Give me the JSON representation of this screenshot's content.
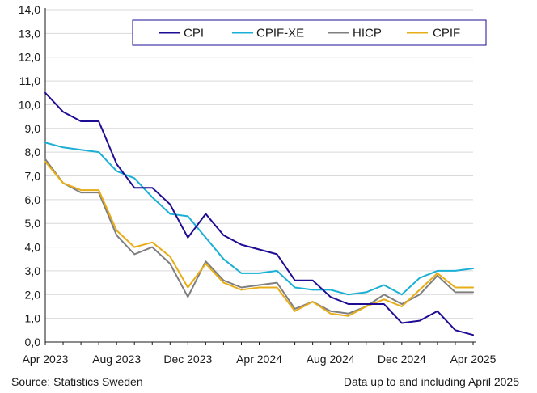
{
  "chart_data": {
    "type": "line",
    "title": "",
    "xlabel": "",
    "ylabel": "",
    "ylim": [
      0,
      14
    ],
    "yticks": [
      "0,0",
      "1,0",
      "2,0",
      "3,0",
      "4,0",
      "5,0",
      "6,0",
      "7,0",
      "8,0",
      "9,0",
      "10,0",
      "11,0",
      "12,0",
      "13,0",
      "14,0"
    ],
    "x": [
      "2023-04",
      "2023-05",
      "2023-06",
      "2023-07",
      "2023-08",
      "2023-09",
      "2023-10",
      "2023-11",
      "2023-12",
      "2024-01",
      "2024-02",
      "2024-03",
      "2024-04",
      "2024-05",
      "2024-06",
      "2024-07",
      "2024-08",
      "2024-09",
      "2024-10",
      "2024-11",
      "2024-12",
      "2025-01",
      "2025-02",
      "2025-03",
      "2025-04"
    ],
    "xticks": [
      {
        "x": "2023-04",
        "label": "Apr 2023"
      },
      {
        "x": "2023-08",
        "label": "Aug 2023"
      },
      {
        "x": "2023-12",
        "label": "Dec 2023"
      },
      {
        "x": "2024-04",
        "label": "Apr 2024"
      },
      {
        "x": "2024-08",
        "label": "Aug 2024"
      },
      {
        "x": "2024-12",
        "label": "Dec 2024"
      },
      {
        "x": "2025-04",
        "label": "Apr 2025"
      }
    ],
    "grid": true,
    "legend_position": "top-right",
    "series": [
      {
        "name": "CPI",
        "color": "#1e0c94",
        "values": [
          10.5,
          9.7,
          9.3,
          9.3,
          7.5,
          6.5,
          6.5,
          5.8,
          4.4,
          5.4,
          4.5,
          4.1,
          3.9,
          3.7,
          2.6,
          2.6,
          1.9,
          1.6,
          1.6,
          1.6,
          0.8,
          0.9,
          1.3,
          0.5,
          0.3
        ]
      },
      {
        "name": "CPIF-XE",
        "color": "#1aafd4",
        "values": [
          8.4,
          8.2,
          8.1,
          8.0,
          7.2,
          6.9,
          6.1,
          5.4,
          5.3,
          4.4,
          3.5,
          2.9,
          2.9,
          3.0,
          2.3,
          2.2,
          2.2,
          2.0,
          2.1,
          2.4,
          2.0,
          2.7,
          3.0,
          3.0,
          3.1
        ]
      },
      {
        "name": "HICP",
        "color": "#7f7f7f",
        "values": [
          7.7,
          6.7,
          6.3,
          6.3,
          4.5,
          3.7,
          4.0,
          3.3,
          1.9,
          3.4,
          2.6,
          2.3,
          2.4,
          2.5,
          1.4,
          1.7,
          1.3,
          1.2,
          1.5,
          2.0,
          1.6,
          2.0,
          2.8,
          2.1,
          2.1
        ]
      },
      {
        "name": "CPIF",
        "color": "#e8ac16",
        "values": [
          7.6,
          6.7,
          6.4,
          6.4,
          4.7,
          4.0,
          4.2,
          3.6,
          2.3,
          3.3,
          2.5,
          2.2,
          2.3,
          2.3,
          1.3,
          1.7,
          1.2,
          1.1,
          1.5,
          1.8,
          1.5,
          2.2,
          2.9,
          2.3,
          2.3
        ]
      }
    ]
  },
  "footer": {
    "source": "Source: Statistics Sweden",
    "note": "Data up to and including April 2025"
  }
}
